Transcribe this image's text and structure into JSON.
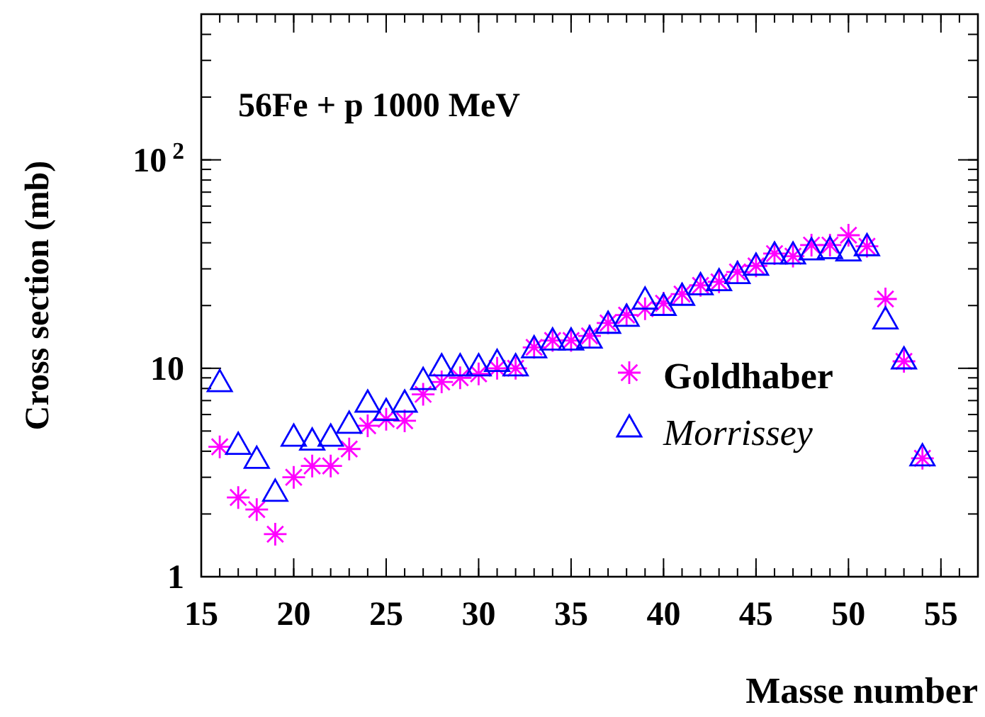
{
  "chart_data": {
    "type": "scatter",
    "title": "56Fe + p 1000 MeV",
    "xlabel": "Masse number",
    "ylabel": "Cross section (mb)",
    "log": "y",
    "xlim": [
      15,
      57
    ],
    "xticks": [
      15,
      20,
      25,
      30,
      35,
      40,
      45,
      50,
      55
    ],
    "ylim": [
      1,
      500
    ],
    "yticks": [
      1,
      10,
      {
        "value": 100,
        "label": "10$^{2}$"
      }
    ],
    "grid": false,
    "legend": "right",
    "series": [
      {
        "name": "Goldhaber",
        "color": "#ff00ff",
        "marker": "cross",
        "x": [
          16,
          17,
          18,
          19,
          20,
          21,
          22,
          23,
          24,
          25,
          26,
          27,
          28,
          29,
          30,
          31,
          32,
          33,
          34,
          35,
          36,
          37,
          38,
          39,
          40,
          41,
          42,
          43,
          44,
          45,
          46,
          47,
          48,
          49,
          50,
          51,
          52,
          53,
          54
        ],
        "values": [
          4.2,
          2.4,
          2.1,
          1.6,
          3.0,
          3.4,
          3.4,
          4.1,
          5.3,
          5.7,
          5.6,
          7.5,
          8.6,
          9.0,
          9.4,
          10,
          10,
          12.6,
          13.6,
          13.6,
          14.3,
          16.5,
          18,
          19.3,
          20.5,
          22.7,
          25,
          26,
          29,
          31,
          35.5,
          34.5,
          39,
          39,
          43.5,
          38.5,
          21.5,
          10.8,
          3.7
        ]
      },
      {
        "name": "Morrissey",
        "color": "#0000ff",
        "marker": "triangle",
        "x": [
          16,
          17,
          18,
          19,
          20,
          21,
          22,
          23,
          24,
          25,
          26,
          27,
          28,
          29,
          30,
          31,
          32,
          33,
          34,
          35,
          36,
          37,
          38,
          39,
          40,
          41,
          42,
          43,
          44,
          45,
          46,
          47,
          48,
          49,
          50,
          51,
          52,
          53,
          54
        ],
        "values": [
          8.4,
          4.2,
          3.6,
          2.5,
          4.6,
          4.4,
          4.6,
          5.3,
          6.7,
          6.1,
          6.7,
          8.6,
          10,
          10,
          10,
          10.5,
          10,
          12.2,
          13.3,
          13.3,
          13.6,
          16,
          17.3,
          20.9,
          19.5,
          21.8,
          24.5,
          25.6,
          27.7,
          30.4,
          34.4,
          34.4,
          36,
          36.5,
          35.6,
          37.7,
          16.8,
          10.8,
          3.7
        ]
      }
    ]
  }
}
